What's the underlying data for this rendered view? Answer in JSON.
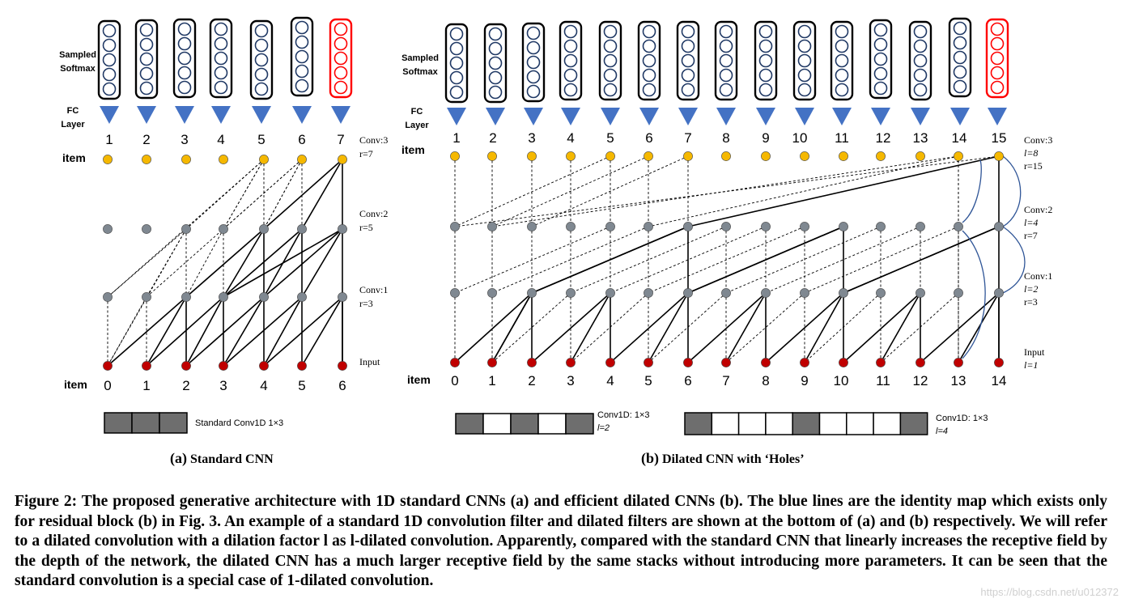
{
  "panel_a": {
    "sampled_softmax_lines": [
      "Sampled",
      "Softmax"
    ],
    "fc_layer_lines": [
      "FC",
      "Layer"
    ],
    "output_numbers": [
      "1",
      "2",
      "3",
      "4",
      "5",
      "6",
      "7"
    ],
    "item_top_label": "item",
    "item_bottom_label": "item",
    "input_numbers": [
      "0",
      "1",
      "2",
      "3",
      "4",
      "5",
      "6"
    ],
    "layer_labels": [
      {
        "lines": [
          "Conv:3",
          "r=7"
        ]
      },
      {
        "lines": [
          "Conv:2",
          "r=5"
        ]
      },
      {
        "lines": [
          "Conv:1",
          "r=3"
        ]
      },
      {
        "lines": [
          "Input"
        ]
      }
    ],
    "filter_label": "Standard Conv1D  1×3",
    "subcaption_letter": "(a)",
    "subcaption_text": "Standard CNN"
  },
  "panel_b": {
    "sampled_softmax_lines": [
      "Sampled",
      "Softmax"
    ],
    "fc_layer_lines": [
      "FC",
      "Layer"
    ],
    "output_numbers": [
      "1",
      "2",
      "3",
      "4",
      "5",
      "6",
      "7",
      "8",
      "9",
      "10",
      "11",
      "12",
      "13",
      "14",
      "15"
    ],
    "item_top_label": "item",
    "item_bottom_label": "item",
    "input_numbers": [
      "0",
      "1",
      "2",
      "3",
      "4",
      "5",
      "6",
      "7",
      "8",
      "9",
      "10",
      "11",
      "12",
      "13",
      "14"
    ],
    "layer_labels": [
      {
        "lines": [
          "Conv:3",
          "l=8",
          "r=15"
        ]
      },
      {
        "lines": [
          "Conv:2",
          "l=4",
          "r=7"
        ]
      },
      {
        "lines": [
          "Conv:1",
          "l=2",
          "r=3"
        ]
      },
      {
        "lines": [
          "Input",
          "l=1"
        ]
      }
    ],
    "filter1_lines": [
      "Conv1D: 1×3",
      "l=2"
    ],
    "filter2_lines": [
      "Conv1D: 1×3",
      "l=4"
    ],
    "subcaption_letter": "(b)",
    "subcaption_text": "Dilated CNN with ‘Holes’"
  },
  "colors": {
    "node_gray": "#7f8891",
    "node_red": "#c00000",
    "node_yellow": "#f5b800",
    "softmax_blue": "#1f3864",
    "softmax_red": "#ff0000",
    "triangle_blue": "#4472c4",
    "identity_line": "#2f5597",
    "filter_gray": "#6e6e6e"
  },
  "caption": {
    "label": "Figure 2:",
    "text": " The proposed generative architecture with 1D standard CNNs (a) and efficient dilated CNNs (b). The blue lines are the identity map which exists only for residual block (b) in Fig. 3. An example of a standard 1D convolution filter and dilated filters are shown at the bottom of (a) and (b) respectively. We will refer to a dilated convolution with a dilation factor l as l-dilated convolution. Apparently, compared with the standard CNN that linearly increases the receptive field by the depth of the network, the dilated CNN has a much larger receptive field by the same stacks without introducing more parameters. It can be seen that the standard convolution is a special case of 1-dilated convolution."
  },
  "watermark": "https://blog.csdn.net/u012372"
}
